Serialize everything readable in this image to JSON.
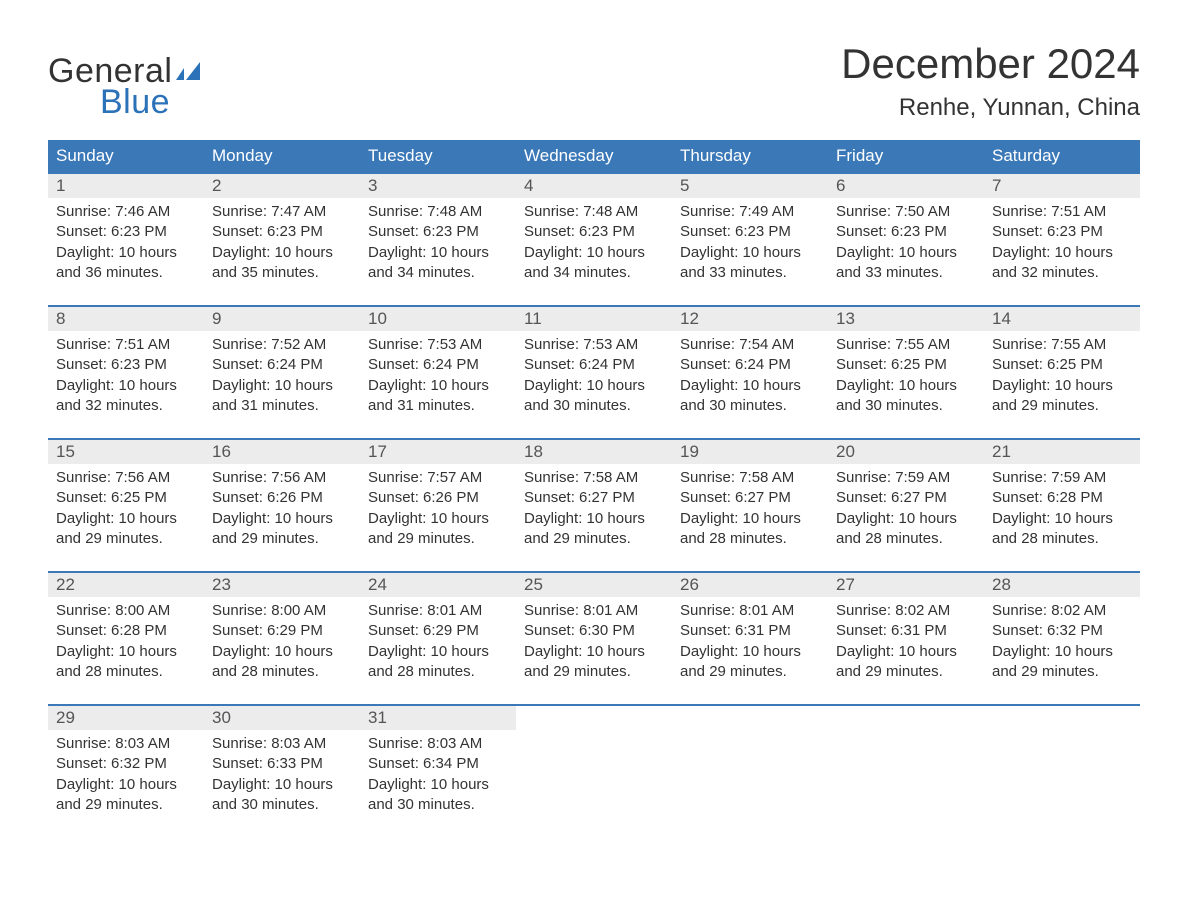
{
  "colors": {
    "header_bg": "#3a78b8",
    "header_text": "#ffffff",
    "daynum_bg": "#ececec",
    "daynum_border": "#3a78b8",
    "body_text": "#333333",
    "logo_accent": "#2b72b8",
    "page_bg": "#ffffff"
  },
  "typography": {
    "title_fontsize": 42,
    "location_fontsize": 24,
    "weekday_fontsize": 17,
    "daynum_fontsize": 17,
    "body_fontsize": 15,
    "logo_fontsize": 34
  },
  "logo": {
    "line1": "General",
    "line2": "Blue"
  },
  "title": "December 2024",
  "location": "Renhe, Yunnan, China",
  "weekdays": [
    "Sunday",
    "Monday",
    "Tuesday",
    "Wednesday",
    "Thursday",
    "Friday",
    "Saturday"
  ],
  "weeks": [
    {
      "days": [
        {
          "num": "1",
          "sunrise": "7:46 AM",
          "sunset": "6:23 PM",
          "daylight": "10 hours and 36 minutes."
        },
        {
          "num": "2",
          "sunrise": "7:47 AM",
          "sunset": "6:23 PM",
          "daylight": "10 hours and 35 minutes."
        },
        {
          "num": "3",
          "sunrise": "7:48 AM",
          "sunset": "6:23 PM",
          "daylight": "10 hours and 34 minutes."
        },
        {
          "num": "4",
          "sunrise": "7:48 AM",
          "sunset": "6:23 PM",
          "daylight": "10 hours and 34 minutes."
        },
        {
          "num": "5",
          "sunrise": "7:49 AM",
          "sunset": "6:23 PM",
          "daylight": "10 hours and 33 minutes."
        },
        {
          "num": "6",
          "sunrise": "7:50 AM",
          "sunset": "6:23 PM",
          "daylight": "10 hours and 33 minutes."
        },
        {
          "num": "7",
          "sunrise": "7:51 AM",
          "sunset": "6:23 PM",
          "daylight": "10 hours and 32 minutes."
        }
      ]
    },
    {
      "days": [
        {
          "num": "8",
          "sunrise": "7:51 AM",
          "sunset": "6:23 PM",
          "daylight": "10 hours and 32 minutes."
        },
        {
          "num": "9",
          "sunrise": "7:52 AM",
          "sunset": "6:24 PM",
          "daylight": "10 hours and 31 minutes."
        },
        {
          "num": "10",
          "sunrise": "7:53 AM",
          "sunset": "6:24 PM",
          "daylight": "10 hours and 31 minutes."
        },
        {
          "num": "11",
          "sunrise": "7:53 AM",
          "sunset": "6:24 PM",
          "daylight": "10 hours and 30 minutes."
        },
        {
          "num": "12",
          "sunrise": "7:54 AM",
          "sunset": "6:24 PM",
          "daylight": "10 hours and 30 minutes."
        },
        {
          "num": "13",
          "sunrise": "7:55 AM",
          "sunset": "6:25 PM",
          "daylight": "10 hours and 30 minutes."
        },
        {
          "num": "14",
          "sunrise": "7:55 AM",
          "sunset": "6:25 PM",
          "daylight": "10 hours and 29 minutes."
        }
      ]
    },
    {
      "days": [
        {
          "num": "15",
          "sunrise": "7:56 AM",
          "sunset": "6:25 PM",
          "daylight": "10 hours and 29 minutes."
        },
        {
          "num": "16",
          "sunrise": "7:56 AM",
          "sunset": "6:26 PM",
          "daylight": "10 hours and 29 minutes."
        },
        {
          "num": "17",
          "sunrise": "7:57 AM",
          "sunset": "6:26 PM",
          "daylight": "10 hours and 29 minutes."
        },
        {
          "num": "18",
          "sunrise": "7:58 AM",
          "sunset": "6:27 PM",
          "daylight": "10 hours and 29 minutes."
        },
        {
          "num": "19",
          "sunrise": "7:58 AM",
          "sunset": "6:27 PM",
          "daylight": "10 hours and 28 minutes."
        },
        {
          "num": "20",
          "sunrise": "7:59 AM",
          "sunset": "6:27 PM",
          "daylight": "10 hours and 28 minutes."
        },
        {
          "num": "21",
          "sunrise": "7:59 AM",
          "sunset": "6:28 PM",
          "daylight": "10 hours and 28 minutes."
        }
      ]
    },
    {
      "days": [
        {
          "num": "22",
          "sunrise": "8:00 AM",
          "sunset": "6:28 PM",
          "daylight": "10 hours and 28 minutes."
        },
        {
          "num": "23",
          "sunrise": "8:00 AM",
          "sunset": "6:29 PM",
          "daylight": "10 hours and 28 minutes."
        },
        {
          "num": "24",
          "sunrise": "8:01 AM",
          "sunset": "6:29 PM",
          "daylight": "10 hours and 28 minutes."
        },
        {
          "num": "25",
          "sunrise": "8:01 AM",
          "sunset": "6:30 PM",
          "daylight": "10 hours and 29 minutes."
        },
        {
          "num": "26",
          "sunrise": "8:01 AM",
          "sunset": "6:31 PM",
          "daylight": "10 hours and 29 minutes."
        },
        {
          "num": "27",
          "sunrise": "8:02 AM",
          "sunset": "6:31 PM",
          "daylight": "10 hours and 29 minutes."
        },
        {
          "num": "28",
          "sunrise": "8:02 AM",
          "sunset": "6:32 PM",
          "daylight": "10 hours and 29 minutes."
        }
      ]
    },
    {
      "days": [
        {
          "num": "29",
          "sunrise": "8:03 AM",
          "sunset": "6:32 PM",
          "daylight": "10 hours and 29 minutes."
        },
        {
          "num": "30",
          "sunrise": "8:03 AM",
          "sunset": "6:33 PM",
          "daylight": "10 hours and 30 minutes."
        },
        {
          "num": "31",
          "sunrise": "8:03 AM",
          "sunset": "6:34 PM",
          "daylight": "10 hours and 30 minutes."
        },
        null,
        null,
        null,
        null
      ]
    }
  ],
  "labels": {
    "sunrise_prefix": "Sunrise: ",
    "sunset_prefix": "Sunset: ",
    "daylight_prefix": "Daylight: "
  }
}
